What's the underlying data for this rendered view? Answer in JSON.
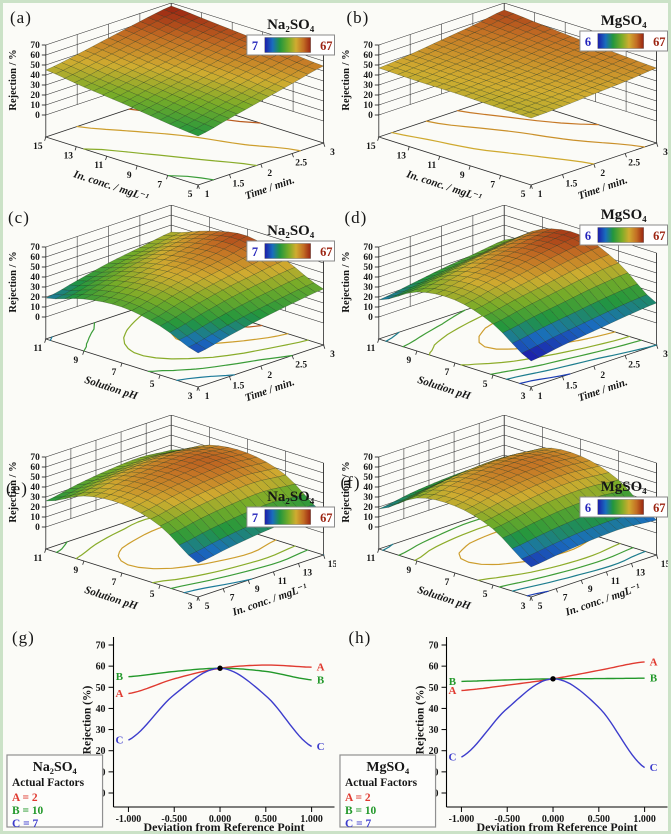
{
  "figure": {
    "border_color": "#cbe2c7",
    "background": "#fbfbf7",
    "colorbar_min_color": "#2424bb",
    "colorbar_max_color": "#9c2412"
  },
  "chart_data": [
    {
      "letter": "(a)",
      "type": "surface3d",
      "salt": "Na₂SO₄",
      "colorbar": {
        "min": "7",
        "max": "67",
        "min_val": 7,
        "max_val": 67
      },
      "x_axis": {
        "label": "Time / min.",
        "ticks": [
          "1",
          "1.5",
          "2",
          "2.5",
          "3"
        ]
      },
      "y_axis": {
        "label": "In. conc. / mgL⁻¹",
        "ticks": [
          "5",
          "7",
          "9",
          "11",
          "13",
          "15"
        ]
      },
      "z_axis": {
        "label": "Rejection / %",
        "min": 0,
        "max": 70,
        "ticks": [
          "0",
          "10",
          "20",
          "30",
          "40",
          "50",
          "60",
          "70"
        ]
      },
      "surface_z_rows_front_to_back": [
        [
          27,
          34,
          41,
          48,
          55
        ],
        [
          31,
          38,
          45,
          52,
          58
        ],
        [
          36,
          42,
          48,
          55,
          61
        ],
        [
          40,
          46,
          52,
          58,
          64
        ],
        [
          45,
          50,
          56,
          62,
          67
        ]
      ]
    },
    {
      "letter": "(b)",
      "type": "surface3d",
      "salt": "MgSO₄",
      "colorbar": {
        "min": "6",
        "max": "67",
        "min_val": 6,
        "max_val": 67
      },
      "x_axis": {
        "label": "Time / min.",
        "ticks": [
          "1",
          "1.5",
          "2",
          "2.5",
          "3"
        ]
      },
      "y_axis": {
        "label": "In. conc. / mgL⁻¹",
        "ticks": [
          "5",
          "7",
          "9",
          "11",
          "13",
          "15"
        ]
      },
      "z_axis": {
        "label": "Rejection / %",
        "min": 0,
        "max": 70,
        "ticks": [
          "0",
          "10",
          "20",
          "30",
          "40",
          "50",
          "60",
          "70"
        ]
      },
      "surface_z_rows_front_to_back": [
        [
          45,
          46,
          48,
          50,
          53
        ],
        [
          45,
          47,
          49,
          52,
          55
        ],
        [
          46,
          48,
          50,
          54,
          57
        ],
        [
          46,
          49,
          52,
          56,
          60
        ],
        [
          47,
          50,
          54,
          58,
          63
        ]
      ]
    },
    {
      "letter": "(c)",
      "type": "surface3d",
      "salt": "Na₂SO₄",
      "colorbar": {
        "min": "7",
        "max": "67",
        "min_val": 7,
        "max_val": 67
      },
      "x_axis": {
        "label": "Time / min.",
        "ticks": [
          "1",
          "1.5",
          "2",
          "2.5",
          "3"
        ]
      },
      "y_axis": {
        "label": "Solution pH",
        "ticks": [
          "3",
          "5",
          "7",
          "9",
          "11"
        ]
      },
      "z_axis": {
        "label": "Rejection / %",
        "min": 0,
        "max": 70,
        "ticks": [
          "0",
          "10",
          "20",
          "30",
          "40",
          "50",
          "60",
          "70"
        ]
      },
      "surface_z_rows_front_to_back": [
        [
          12,
          19,
          25,
          30,
          34
        ],
        [
          27,
          35,
          42,
          47,
          51
        ],
        [
          34,
          43,
          50,
          56,
          63
        ],
        [
          30,
          38,
          45,
          51,
          56
        ],
        [
          19,
          26,
          33,
          38,
          43
        ]
      ]
    },
    {
      "letter": "(d)",
      "type": "surface3d",
      "salt": "MgSO₄",
      "colorbar": {
        "min": "6",
        "max": "67",
        "min_val": 6,
        "max_val": 67
      },
      "x_axis": {
        "label": "Time / min.",
        "ticks": [
          "1",
          "1.5",
          "2",
          "2.5",
          "3"
        ]
      },
      "y_axis": {
        "label": "Solution pH",
        "ticks": [
          "3",
          "5",
          "7",
          "9",
          "11"
        ]
      },
      "z_axis": {
        "label": "Rejection / %",
        "min": 0,
        "max": 70,
        "ticks": [
          "0",
          "10",
          "20",
          "30",
          "40",
          "50",
          "60",
          "70"
        ]
      },
      "surface_z_rows_front_to_back": [
        [
          4,
          9,
          13,
          17,
          20
        ],
        [
          29,
          35,
          40,
          45,
          48
        ],
        [
          41,
          48,
          54,
          60,
          64
        ],
        [
          37,
          43,
          49,
          54,
          58
        ],
        [
          17,
          22,
          27,
          31,
          35
        ]
      ]
    },
    {
      "letter": "(e)",
      "type": "surface3d",
      "salt": "Na₂SO₄",
      "colorbar": {
        "min": "7",
        "max": "67",
        "min_val": 7,
        "max_val": 67
      },
      "x_axis": {
        "label": "In. conc. / mgL⁻¹",
        "ticks": [
          "5",
          "7",
          "9",
          "11",
          "13",
          "15"
        ]
      },
      "y_axis": {
        "label": "Solution pH",
        "ticks": [
          "3",
          "5",
          "7",
          "9",
          "11"
        ]
      },
      "z_axis": {
        "label": "Rejection / %",
        "min": 0,
        "max": 70,
        "ticks": [
          "0",
          "10",
          "20",
          "30",
          "40",
          "50",
          "60",
          "70"
        ]
      },
      "surface_z_rows_front_to_back": [
        [
          12,
          17,
          21,
          23,
          20
        ],
        [
          37,
          43,
          47,
          49,
          46
        ],
        [
          47,
          53,
          57,
          59,
          56
        ],
        [
          43,
          49,
          53,
          55,
          52
        ],
        [
          26,
          32,
          36,
          38,
          35
        ]
      ]
    },
    {
      "letter": "(f)",
      "type": "surface3d",
      "salt": "MgSO₄",
      "colorbar": {
        "min": "6",
        "max": "67",
        "min_val": 6,
        "max_val": 67
      },
      "x_axis": {
        "label": "In. conc. / mgL⁻¹",
        "ticks": [
          "5",
          "7",
          "9",
          "11",
          "13",
          "15"
        ]
      },
      "y_axis": {
        "label": "Solution pH",
        "ticks": [
          "3",
          "5",
          "7",
          "9",
          "11"
        ]
      },
      "z_axis": {
        "label": "Rejection / %",
        "min": 0,
        "max": 70,
        "ticks": [
          "0",
          "10",
          "20",
          "30",
          "40",
          "50",
          "60",
          "70"
        ]
      },
      "surface_z_rows_front_to_back": [
        [
          8,
          12,
          15,
          16,
          13
        ],
        [
          34,
          39,
          43,
          44,
          41
        ],
        [
          45,
          51,
          55,
          56,
          53
        ],
        [
          41,
          47,
          51,
          52,
          49
        ],
        [
          18,
          23,
          26,
          27,
          24
        ]
      ]
    },
    {
      "letter": "(g)",
      "type": "perturbation",
      "salt": "Na₂SO₄",
      "x_axis": {
        "label": "Deviation from Reference Point",
        "ticks": [
          "-1.000",
          "-0.500",
          "0.000",
          "0.500",
          "1.000"
        ]
      },
      "y_axis": {
        "label": "Rejection (%)",
        "min": 0,
        "max": 70,
        "ticks": [
          "0",
          "10",
          "20",
          "30",
          "40",
          "50",
          "60",
          "70"
        ]
      },
      "x_values": [
        -1,
        -0.5,
        0,
        0.5,
        1
      ],
      "series": [
        {
          "name": "A",
          "color": "#e03a30",
          "values": [
            47,
            54,
            59,
            60.5,
            59.5
          ]
        },
        {
          "name": "B",
          "color": "#22982a",
          "values": [
            55,
            57.5,
            59,
            57.5,
            53.5
          ]
        },
        {
          "name": "C",
          "color": "#3c3ccc",
          "values": [
            25,
            46.5,
            59,
            46,
            22
          ]
        }
      ],
      "center_point": {
        "x": 0,
        "y": 59
      },
      "legend": {
        "title": "Na₂SO₄",
        "subtitle": "Actual Factors",
        "factors": [
          {
            "label": "A = 2",
            "color": "#e03a30"
          },
          {
            "label": "B = 10",
            "color": "#22982a"
          },
          {
            "label": "C = 7",
            "color": "#3c3ccc"
          }
        ]
      }
    },
    {
      "letter": "(h)",
      "type": "perturbation",
      "salt": "MgSO₄",
      "x_axis": {
        "label": "Deviation from Reference Point",
        "ticks": [
          "-1.000",
          "-0.500",
          "0.000",
          "0.500",
          "1.000"
        ]
      },
      "y_axis": {
        "label": "Rejection (%)",
        "min": 0,
        "max": 70,
        "ticks": [
          "0",
          "10",
          "20",
          "30",
          "40",
          "50",
          "60",
          "70"
        ]
      },
      "x_values": [
        -1,
        -0.5,
        0,
        0.5,
        1
      ],
      "series": [
        {
          "name": "A",
          "color": "#e03a30",
          "values": [
            48.5,
            51,
            54,
            58,
            62
          ]
        },
        {
          "name": "B",
          "color": "#22982a",
          "values": [
            52.8,
            53.5,
            54,
            54.1,
            54.3
          ]
        },
        {
          "name": "C",
          "color": "#3c3ccc",
          "values": [
            17,
            40,
            54,
            40.5,
            12
          ]
        }
      ],
      "center_point": {
        "x": 0,
        "y": 54
      },
      "legend": {
        "title": "MgSO₄",
        "subtitle": "Actual Factors",
        "factors": [
          {
            "label": "A = 2",
            "color": "#e03a30"
          },
          {
            "label": "B = 10",
            "color": "#22982a"
          },
          {
            "label": "C = 7",
            "color": "#3c3ccc"
          }
        ]
      }
    }
  ]
}
